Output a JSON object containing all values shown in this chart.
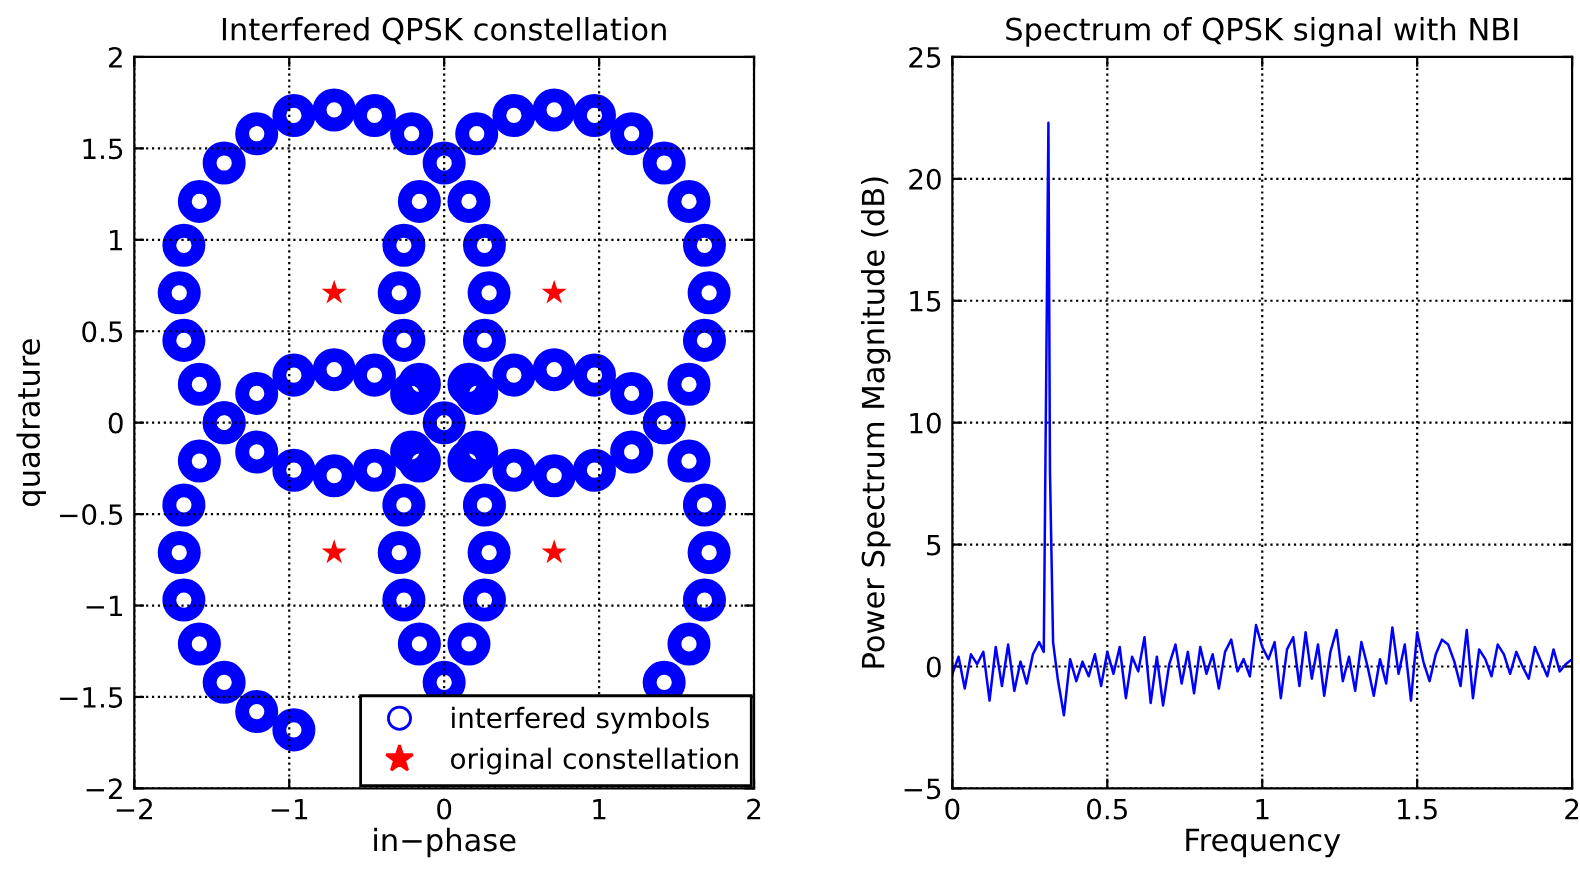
{
  "chart_data": [
    {
      "type": "scatter",
      "title": "Interfered QPSK constellation",
      "xlabel": "in−phase",
      "ylabel": "quadrature",
      "xlim": [
        -2,
        2
      ],
      "ylim": [
        -2,
        2
      ],
      "xticks": [
        {
          "value": -2,
          "label": "−2"
        },
        {
          "value": -1,
          "label": "−1"
        },
        0,
        1,
        2
      ],
      "yticks": [
        {
          "value": -2,
          "label": "−2"
        },
        {
          "value": -1.5,
          "label": "−1.5"
        },
        {
          "value": -1,
          "label": "−1"
        },
        {
          "value": -0.5,
          "label": "−0.5"
        },
        0,
        0.5,
        1,
        1.5,
        2
      ],
      "grid": true,
      "legend": "bottom right",
      "series": [
        {
          "name": "interfered symbols",
          "color": "#0000ff",
          "marker": "circle",
          "x": [
            1.71,
            1.68,
            1.58,
            1.42,
            1.21,
            0.97,
            0.71,
            0.45,
            0.21,
            0.0,
            -0.16,
            -0.26,
            -0.29,
            -0.26,
            -0.16,
            0.0,
            0.21,
            0.45,
            0.71,
            0.97,
            1.21,
            1.42,
            1.58,
            1.68,
            -1.71,
            -1.68,
            -1.58,
            -1.42,
            -1.21,
            -0.97,
            -0.71,
            -0.45,
            -0.21,
            0.16,
            0.26,
            0.29,
            0.26,
            0.16,
            -0.21,
            -0.45,
            -0.71,
            -0.97,
            -1.21,
            -1.42,
            -1.58,
            -1.68,
            -1.71,
            -1.68,
            -1.58,
            -1.42,
            -1.21,
            -0.97,
            0.16,
            0.26,
            0.29,
            0.26,
            0.16,
            -0.21,
            -0.45,
            -0.71,
            -0.97,
            -1.21,
            -1.42,
            -1.58,
            -1.68,
            1.71,
            1.68,
            1.58,
            1.42,
            0.0,
            -0.16,
            -0.26,
            -0.29,
            -0.26,
            -0.16,
            0.21,
            0.45,
            0.71,
            0.97,
            1.21,
            1.42,
            1.58,
            1.68
          ],
          "values": [
            0.71,
            0.97,
            1.21,
            1.42,
            1.58,
            1.68,
            1.71,
            1.68,
            1.58,
            1.42,
            1.21,
            0.97,
            0.71,
            0.45,
            0.21,
            0.0,
            -0.16,
            -0.26,
            -0.29,
            -0.26,
            -0.16,
            0.0,
            0.21,
            0.45,
            0.71,
            0.97,
            1.21,
            1.42,
            1.58,
            1.68,
            1.71,
            1.68,
            1.58,
            1.21,
            0.97,
            0.71,
            0.45,
            0.21,
            -0.16,
            -0.26,
            -0.29,
            -0.26,
            -0.16,
            0.0,
            0.21,
            0.45,
            -0.71,
            -0.97,
            -1.21,
            -1.42,
            -1.58,
            -1.68,
            -1.21,
            -0.97,
            -0.71,
            -0.45,
            -0.21,
            0.16,
            0.26,
            0.29,
            0.26,
            0.16,
            0.0,
            -0.21,
            -0.45,
            -0.71,
            -0.97,
            -1.21,
            -1.42,
            -1.42,
            -1.21,
            -0.97,
            -0.71,
            -0.45,
            -0.21,
            0.16,
            0.26,
            0.29,
            0.26,
            0.16,
            0.0,
            -0.21,
            -0.45
          ]
        },
        {
          "name": "original constellation",
          "color": "#ff0000",
          "marker": "star",
          "x": [
            0.71,
            -0.71,
            -0.71,
            0.71
          ],
          "values": [
            0.71,
            0.71,
            -0.71,
            -0.71
          ]
        }
      ]
    },
    {
      "type": "line",
      "title": "Spectrum of QPSK signal with NBI",
      "xlabel": "Frequency",
      "ylabel": "Power Spectrum Magnitude (dB)",
      "xlim": [
        0,
        2
      ],
      "ylim": [
        -5,
        25
      ],
      "xticks": [
        0,
        0.5,
        1,
        1.5,
        2
      ],
      "yticks": [
        {
          "value": -5,
          "label": "−5"
        },
        0,
        5,
        10,
        15,
        20,
        25
      ],
      "grid": true,
      "legend": false,
      "series": [
        {
          "color": "#0000ff",
          "marker": "none",
          "x": [
            0,
            0.02,
            0.04,
            0.06,
            0.08,
            0.1,
            0.12,
            0.14,
            0.16,
            0.18,
            0.2,
            0.22,
            0.24,
            0.26,
            0.28,
            0.295,
            0.305,
            0.31,
            0.315,
            0.325,
            0.34,
            0.36,
            0.38,
            0.4,
            0.42,
            0.44,
            0.46,
            0.48,
            0.5,
            0.52,
            0.54,
            0.56,
            0.58,
            0.6,
            0.62,
            0.64,
            0.66,
            0.68,
            0.7,
            0.72,
            0.74,
            0.76,
            0.78,
            0.8,
            0.82,
            0.84,
            0.86,
            0.88,
            0.9,
            0.92,
            0.94,
            0.96,
            0.98,
            1.0,
            1.02,
            1.04,
            1.06,
            1.08,
            1.1,
            1.12,
            1.14,
            1.16,
            1.18,
            1.2,
            1.22,
            1.24,
            1.26,
            1.28,
            1.3,
            1.32,
            1.34,
            1.36,
            1.38,
            1.4,
            1.42,
            1.44,
            1.46,
            1.48,
            1.5,
            1.52,
            1.54,
            1.56,
            1.58,
            1.6,
            1.62,
            1.64,
            1.66,
            1.68,
            1.7,
            1.72,
            1.74,
            1.76,
            1.78,
            1.8,
            1.82,
            1.84,
            1.86,
            1.88,
            1.9,
            1.92,
            1.94,
            1.96,
            1.98,
            2.0
          ],
          "values": [
            -0.3,
            0.4,
            -0.9,
            0.5,
            0.1,
            0.6,
            -1.4,
            0.8,
            -0.8,
            0.9,
            -1.0,
            0.2,
            -0.7,
            0.5,
            1.0,
            0.6,
            15,
            22.3,
            8,
            1.0,
            -0.5,
            -2.0,
            0.3,
            -0.6,
            0.2,
            -0.4,
            0.5,
            -0.8,
            0.6,
            -0.3,
            0.8,
            -1.3,
            0.4,
            -0.2,
            1.2,
            -1.5,
            0.4,
            -1.6,
            0.1,
            0.9,
            -0.7,
            0.6,
            -1.1,
            0.8,
            -0.3,
            0.5,
            -0.9,
            0.6,
            1.1,
            -0.2,
            0.3,
            -0.4,
            1.7,
            0.8,
            0.3,
            1.0,
            -1.3,
            0.7,
            1.2,
            -0.8,
            1.4,
            -0.5,
            0.9,
            -1.2,
            0.6,
            1.5,
            -0.6,
            0.4,
            -1.0,
            1.0,
            0.0,
            -1.2,
            0.3,
            -0.7,
            1.6,
            -0.3,
            0.9,
            -1.4,
            1.4,
            0.2,
            -0.6,
            0.5,
            1.1,
            0.9,
            0.2,
            -0.8,
            1.5,
            -1.3,
            0.7,
            0.3,
            -0.4,
            0.9,
            0.5,
            -0.3,
            0.6,
            0.0,
            -0.5,
            0.8,
            0.2,
            -0.4,
            0.7,
            -0.2,
            0.1,
            0.3
          ]
        }
      ]
    }
  ]
}
